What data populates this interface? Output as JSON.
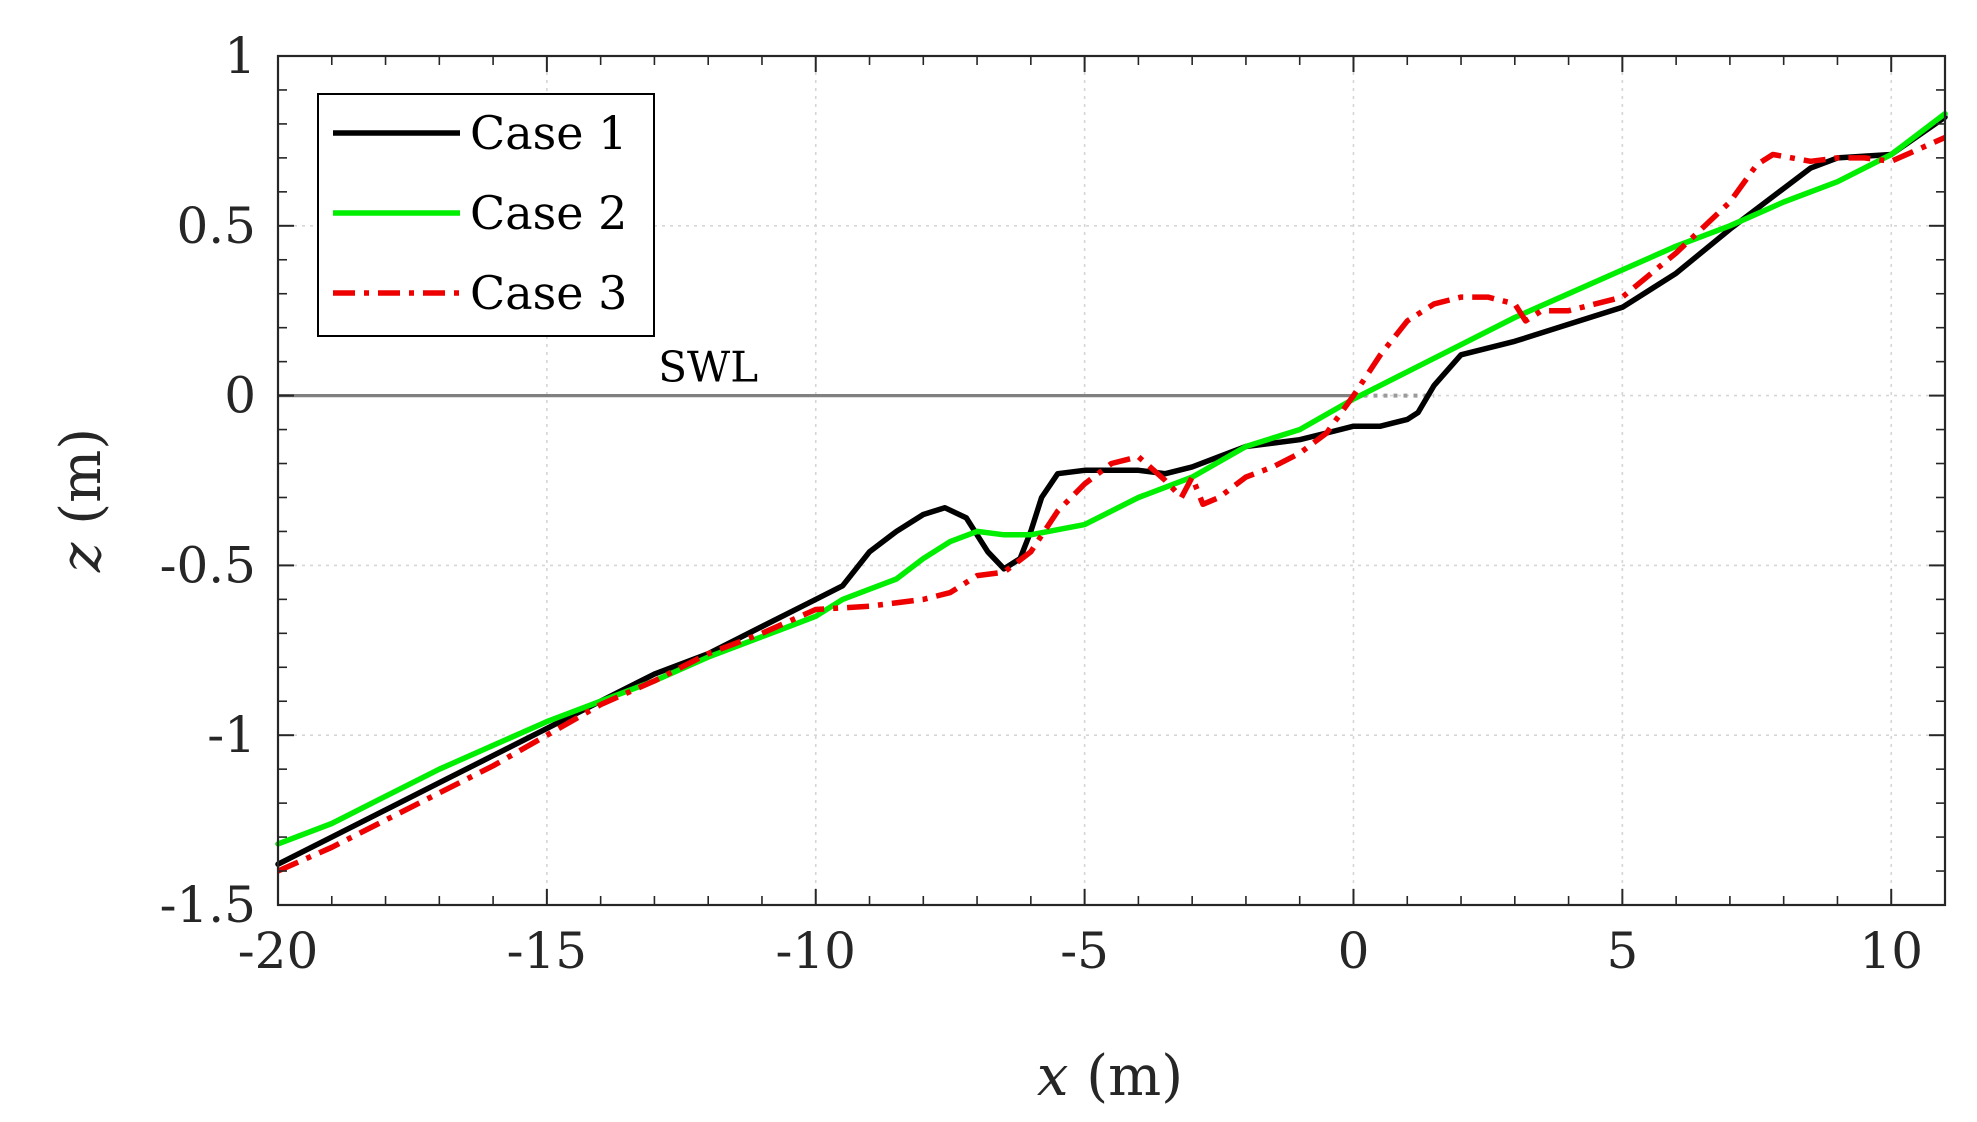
{
  "chart_data": {
    "type": "line",
    "title": "",
    "xlabel": "x (m)",
    "ylabel": "z (m)",
    "xlabel_var": "x",
    "xlabel_unit": " (m)",
    "ylabel_var": "z",
    "ylabel_unit": " (m)",
    "xlim": [
      -20,
      11
    ],
    "ylim": [
      -1.5,
      1
    ],
    "xticks": [
      -20,
      -15,
      -10,
      -5,
      0,
      5,
      10
    ],
    "xtick_labels": [
      "-20",
      "-15",
      "-10",
      "-5",
      "0",
      "5",
      "10"
    ],
    "yticks": [
      1,
      0.5,
      0,
      -0.5,
      -1,
      -1.5
    ],
    "ytick_labels": [
      "1",
      "0.5",
      "0",
      "-0.5",
      "-1",
      "-1.5"
    ],
    "grid": true,
    "legend_position": "top-left",
    "series": [
      {
        "name": "Case 1",
        "color": "#000000",
        "style": "solid",
        "x": [
          -20,
          -19,
          -18,
          -17,
          -16,
          -15,
          -14,
          -13,
          -12,
          -11,
          -10,
          -9.5,
          -9,
          -8.5,
          -8,
          -7.6,
          -7.2,
          -6.8,
          -6.5,
          -6.2,
          -6,
          -5.8,
          -5.5,
          -5,
          -4.5,
          -4,
          -3.5,
          -3,
          -2.5,
          -2,
          -1.5,
          -1,
          -0.5,
          0,
          0.5,
          1,
          1.2,
          1.5,
          2,
          3,
          4,
          5,
          6,
          7,
          8,
          8.5,
          9,
          10,
          11
        ],
        "y": [
          -1.38,
          -1.3,
          -1.22,
          -1.14,
          -1.06,
          -0.98,
          -0.9,
          -0.82,
          -0.76,
          -0.68,
          -0.6,
          -0.56,
          -0.46,
          -0.4,
          -0.35,
          -0.33,
          -0.36,
          -0.46,
          -0.51,
          -0.48,
          -0.4,
          -0.3,
          -0.23,
          -0.22,
          -0.22,
          -0.22,
          -0.23,
          -0.21,
          -0.18,
          -0.15,
          -0.14,
          -0.13,
          -0.11,
          -0.09,
          -0.09,
          -0.07,
          -0.05,
          0.03,
          0.12,
          0.16,
          0.21,
          0.26,
          0.36,
          0.49,
          0.61,
          0.67,
          0.7,
          0.71,
          0.82
        ]
      },
      {
        "name": "Case 2",
        "color": "#00ee00",
        "style": "solid",
        "x": [
          -20,
          -19,
          -18,
          -17,
          -16,
          -15,
          -14,
          -13,
          -12,
          -11,
          -10.5,
          -10,
          -9.5,
          -9,
          -8.5,
          -8,
          -7.5,
          -7,
          -6.5,
          -6,
          -5,
          -4,
          -3,
          -2,
          -1,
          0,
          1,
          2,
          3,
          4,
          5,
          6,
          7,
          8,
          9,
          10,
          11
        ],
        "y": [
          -1.32,
          -1.26,
          -1.18,
          -1.1,
          -1.03,
          -0.96,
          -0.9,
          -0.84,
          -0.77,
          -0.71,
          -0.68,
          -0.65,
          -0.6,
          -0.57,
          -0.54,
          -0.48,
          -0.43,
          -0.4,
          -0.41,
          -0.41,
          -0.38,
          -0.3,
          -0.24,
          -0.15,
          -0.1,
          -0.01,
          0.07,
          0.15,
          0.23,
          0.3,
          0.37,
          0.44,
          0.5,
          0.57,
          0.63,
          0.71,
          0.83
        ]
      },
      {
        "name": "Case 3",
        "color": "#ee0000",
        "style": "dashdot",
        "x": [
          -20,
          -19,
          -18,
          -17,
          -16,
          -15,
          -14,
          -13,
          -12,
          -11,
          -10,
          -9,
          -8,
          -7.5,
          -7,
          -6.5,
          -6,
          -5.5,
          -5,
          -4.5,
          -4,
          -3.5,
          -3.2,
          -3,
          -2.8,
          -2.5,
          -2,
          -1.5,
          -1,
          -0.5,
          0,
          0.5,
          1,
          1.5,
          2,
          2.5,
          3,
          3.2,
          3.5,
          4,
          5,
          6,
          7,
          7.5,
          7.8,
          8.5,
          9,
          9.5,
          10,
          11
        ],
        "y": [
          -1.4,
          -1.33,
          -1.25,
          -1.17,
          -1.09,
          -1,
          -0.91,
          -0.84,
          -0.76,
          -0.7,
          -0.63,
          -0.62,
          -0.6,
          -0.58,
          -0.53,
          -0.52,
          -0.46,
          -0.34,
          -0.26,
          -0.2,
          -0.18,
          -0.25,
          -0.3,
          -0.24,
          -0.32,
          -0.3,
          -0.24,
          -0.21,
          -0.17,
          -0.11,
          0,
          0.12,
          0.22,
          0.27,
          0.29,
          0.29,
          0.27,
          0.22,
          0.25,
          0.25,
          0.29,
          0.42,
          0.57,
          0.68,
          0.71,
          0.69,
          0.7,
          0.7,
          0.69,
          0.76
        ]
      }
    ],
    "annotations": [
      {
        "text": "SWL",
        "x": -12,
        "y": 0.03
      }
    ],
    "reference_lines": [
      {
        "name": "SWL line",
        "y": 0,
        "x_start": -20,
        "x_end": 0,
        "color": "#808080",
        "style": "solid"
      },
      {
        "name": "SWL extension",
        "y": 0,
        "x_start": 0,
        "x_end": 1.5,
        "color": "#9a9a9a",
        "style": "dotted"
      }
    ]
  }
}
